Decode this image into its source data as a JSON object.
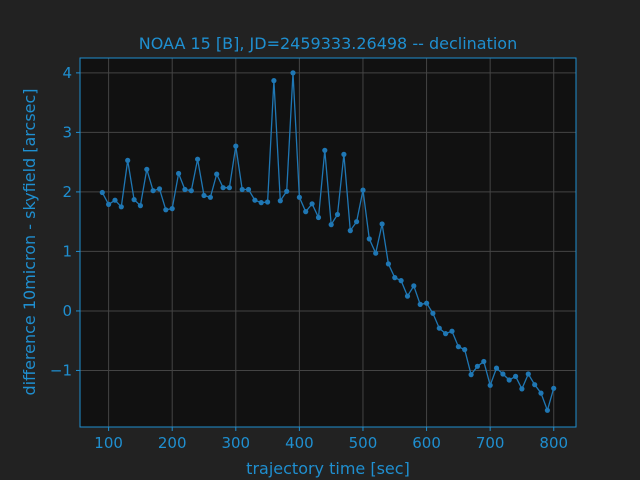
{
  "chart_data": {
    "type": "line",
    "title": "NOAA 15 [B], JD=2459333.26498 -- declination",
    "xlabel": "trajectory time [sec]",
    "ylabel": "difference 10micron - skyfield [arcsec]",
    "xlim": [
      55,
      835
    ],
    "ylim": [
      -1.95,
      4.25
    ],
    "xticks": [
      100,
      200,
      300,
      400,
      500,
      600,
      700,
      800
    ],
    "yticks": [
      -1,
      0,
      1,
      2,
      3,
      4
    ],
    "ytick_labels": [
      "−1",
      "0",
      "1",
      "2",
      "3",
      "4"
    ],
    "grid": true,
    "colors": {
      "background": "#222222",
      "plot_bg": "#111111",
      "line": "#1f77b4",
      "text": "#1f8fd0",
      "grid": "#444444",
      "spine": "#1f8fd0"
    },
    "series": [
      {
        "x": [
          90,
          100,
          110,
          120,
          130,
          140,
          150,
          160,
          170,
          180,
          190,
          200,
          210,
          220,
          230,
          240,
          250,
          260,
          270,
          280,
          290,
          300,
          310,
          320,
          330,
          340,
          350,
          360,
          370,
          380,
          390,
          400,
          410,
          420,
          430,
          440,
          450,
          460,
          470,
          480,
          490,
          500,
          510,
          520,
          530,
          540,
          550,
          560,
          570,
          580,
          590,
          600,
          610,
          620,
          630,
          640,
          650,
          660,
          670,
          680,
          690,
          700,
          710,
          720,
          730,
          740,
          750,
          760,
          770,
          780,
          790,
          800
        ],
        "values": [
          1.99,
          1.79,
          1.86,
          1.75,
          2.53,
          1.87,
          1.77,
          2.38,
          2.02,
          2.05,
          1.7,
          1.72,
          2.31,
          2.04,
          2.02,
          2.55,
          1.94,
          1.91,
          2.3,
          2.07,
          2.07,
          2.77,
          2.04,
          2.04,
          1.86,
          1.82,
          1.83,
          3.87,
          1.85,
          2.01,
          4.0,
          1.91,
          1.67,
          1.8,
          1.57,
          2.7,
          1.45,
          1.62,
          2.63,
          1.35,
          1.5,
          2.03,
          1.21,
          0.97,
          1.46,
          0.79,
          0.56,
          0.51,
          0.25,
          0.42,
          0.11,
          0.13,
          -0.04,
          -0.29,
          -0.38,
          -0.34,
          -0.6,
          -0.65,
          -1.07,
          -0.93,
          -0.85,
          -1.25,
          -0.96,
          -1.06,
          -1.16,
          -1.1,
          -1.31,
          -1.06,
          -1.24,
          -1.38,
          -1.67,
          -1.3
        ]
      }
    ]
  }
}
